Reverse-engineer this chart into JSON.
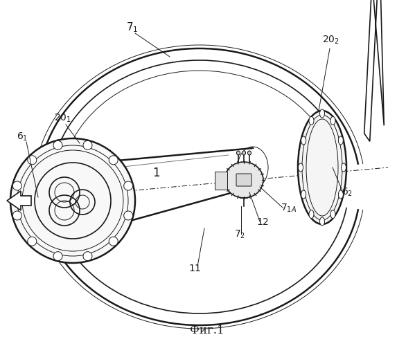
{
  "bg_color": "#ffffff",
  "lc": "#1a1a1a",
  "title": "Фиг.1",
  "lw_thick": 1.8,
  "lw_main": 1.2,
  "lw_thin": 0.7
}
